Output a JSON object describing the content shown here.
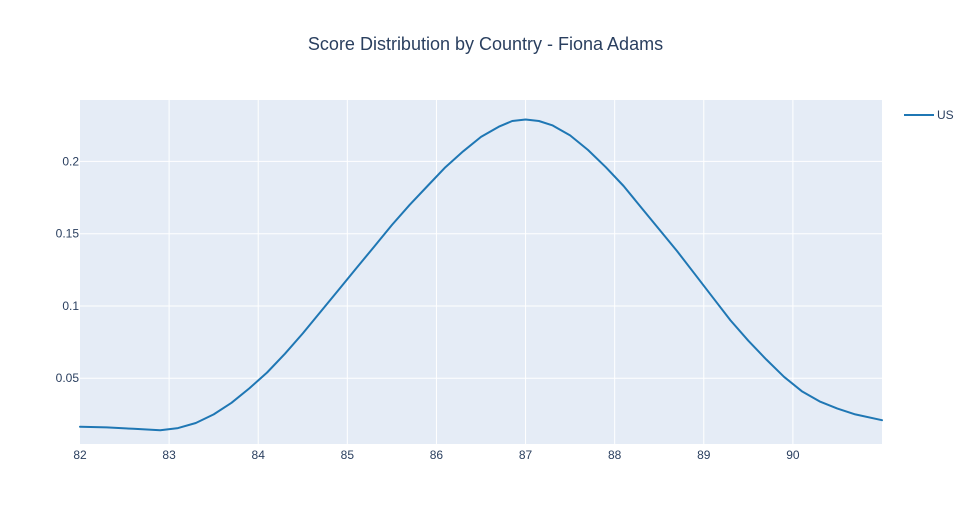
{
  "chart_data": {
    "type": "line",
    "title": "Score Distribution by Country - Fiona Adams",
    "xlabel": "",
    "ylabel": "",
    "xlim": [
      82,
      91
    ],
    "ylim": [
      0.0045,
      0.2425
    ],
    "x_ticks": [
      82,
      83,
      84,
      85,
      86,
      87,
      88,
      89,
      90
    ],
    "y_ticks": [
      0.05,
      0.1,
      0.15,
      0.2
    ],
    "grid": true,
    "legend_position": "top-right",
    "series": [
      {
        "name": "US",
        "color": "#1f77b4",
        "x": [
          82,
          82.3,
          82.6,
          82.9,
          83.1,
          83.3,
          83.5,
          83.7,
          83.9,
          84.1,
          84.3,
          84.5,
          84.7,
          84.9,
          85.1,
          85.3,
          85.5,
          85.7,
          85.9,
          86.1,
          86.3,
          86.5,
          86.7,
          86.85,
          87.0,
          87.15,
          87.3,
          87.5,
          87.7,
          87.9,
          88.1,
          88.3,
          88.5,
          88.7,
          88.9,
          89.1,
          89.3,
          89.5,
          89.7,
          89.9,
          90.1,
          90.3,
          90.5,
          90.7,
          91.0
        ],
        "y": [
          0.0165,
          0.016,
          0.015,
          0.014,
          0.0155,
          0.019,
          0.025,
          0.033,
          0.043,
          0.054,
          0.067,
          0.081,
          0.096,
          0.111,
          0.126,
          0.141,
          0.156,
          0.17,
          0.183,
          0.196,
          0.207,
          0.217,
          0.224,
          0.228,
          0.229,
          0.228,
          0.225,
          0.218,
          0.208,
          0.196,
          0.183,
          0.168,
          0.153,
          0.138,
          0.122,
          0.106,
          0.09,
          0.076,
          0.063,
          0.051,
          0.041,
          0.034,
          0.029,
          0.025,
          0.021
        ]
      }
    ]
  }
}
